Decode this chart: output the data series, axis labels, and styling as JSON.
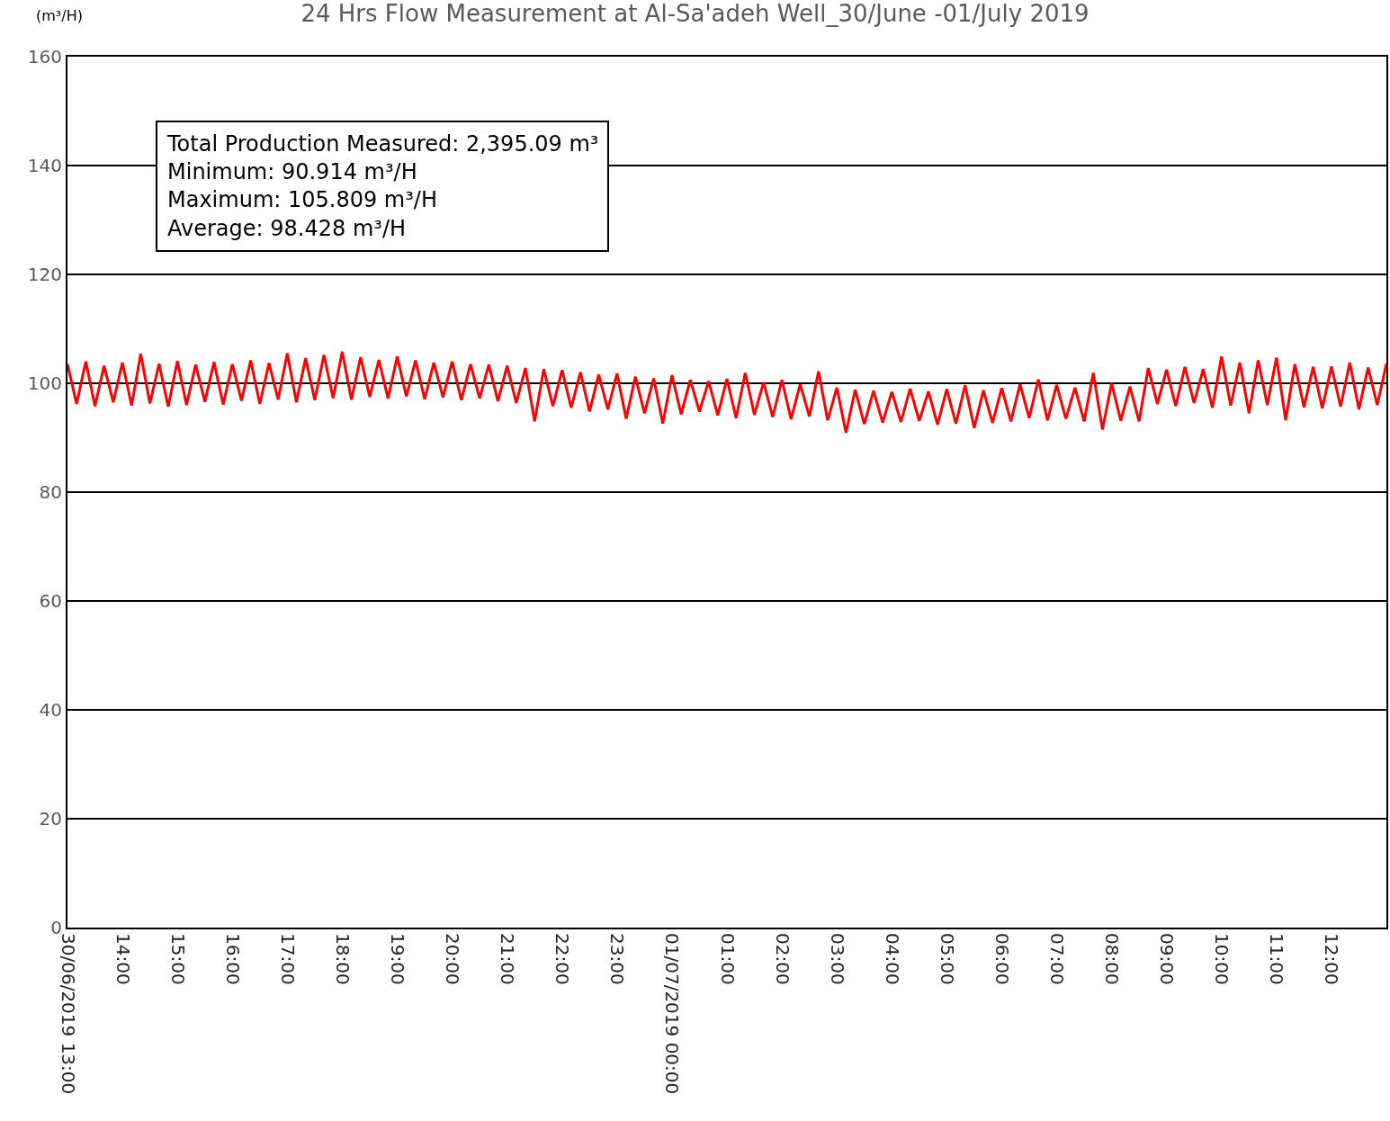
{
  "chart_data": {
    "type": "line",
    "title": "24 Hrs Flow Measurement at Al-Sa'adeh Well_30/June -01/July 2019",
    "ylabel": "(m³/H)",
    "annotations": [
      "Total Production Measured: 2,395.09 m³\nMinimum: 90.914 m³/H\nMaximum: 105.809 m³/H\nAverage: 98.428 m³/H"
    ],
    "x": [
      "2019-06-30T13:00",
      "2019-06-30T13:10",
      "2019-06-30T13:20",
      "2019-06-30T13:30",
      "2019-06-30T13:40",
      "2019-06-30T13:50",
      "2019-06-30T14:00",
      "2019-06-30T14:10",
      "2019-06-30T14:20",
      "2019-06-30T14:30",
      "2019-06-30T14:40",
      "2019-06-30T14:50",
      "2019-06-30T15:00",
      "2019-06-30T15:10",
      "2019-06-30T15:20",
      "2019-06-30T15:30",
      "2019-06-30T15:40",
      "2019-06-30T15:50",
      "2019-06-30T16:00",
      "2019-06-30T16:10",
      "2019-06-30T16:20",
      "2019-06-30T16:30",
      "2019-06-30T16:40",
      "2019-06-30T16:50",
      "2019-06-30T17:00",
      "2019-06-30T17:10",
      "2019-06-30T17:20",
      "2019-06-30T17:30",
      "2019-06-30T17:40",
      "2019-06-30T17:50",
      "2019-06-30T18:00",
      "2019-06-30T18:10",
      "2019-06-30T18:20",
      "2019-06-30T18:30",
      "2019-06-30T18:40",
      "2019-06-30T18:50",
      "2019-06-30T19:00",
      "2019-06-30T19:10",
      "2019-06-30T19:20",
      "2019-06-30T19:30",
      "2019-06-30T19:40",
      "2019-06-30T19:50",
      "2019-06-30T20:00",
      "2019-06-30T20:10",
      "2019-06-30T20:20",
      "2019-06-30T20:30",
      "2019-06-30T20:40",
      "2019-06-30T20:50",
      "2019-06-30T21:00",
      "2019-06-30T21:10",
      "2019-06-30T21:20",
      "2019-06-30T21:30",
      "2019-06-30T21:40",
      "2019-06-30T21:50",
      "2019-06-30T22:00",
      "2019-06-30T22:10",
      "2019-06-30T22:20",
      "2019-06-30T22:30",
      "2019-06-30T22:40",
      "2019-06-30T22:50",
      "2019-06-30T23:00",
      "2019-06-30T23:10",
      "2019-06-30T23:20",
      "2019-06-30T23:30",
      "2019-06-30T23:40",
      "2019-06-30T23:50",
      "2019-07-01T00:00",
      "2019-07-01T00:10",
      "2019-07-01T00:20",
      "2019-07-01T00:30",
      "2019-07-01T00:40",
      "2019-07-01T00:50",
      "2019-07-01T01:00",
      "2019-07-01T01:10",
      "2019-07-01T01:20",
      "2019-07-01T01:30",
      "2019-07-01T01:40",
      "2019-07-01T01:50",
      "2019-07-01T02:00",
      "2019-07-01T02:10",
      "2019-07-01T02:20",
      "2019-07-01T02:30",
      "2019-07-01T02:40",
      "2019-07-01T02:50",
      "2019-07-01T03:00",
      "2019-07-01T03:10",
      "2019-07-01T03:20",
      "2019-07-01T03:30",
      "2019-07-01T03:40",
      "2019-07-01T03:50",
      "2019-07-01T04:00",
      "2019-07-01T04:10",
      "2019-07-01T04:20",
      "2019-07-01T04:30",
      "2019-07-01T04:40",
      "2019-07-01T04:50",
      "2019-07-01T05:00",
      "2019-07-01T05:10",
      "2019-07-01T05:20",
      "2019-07-01T05:30",
      "2019-07-01T05:40",
      "2019-07-01T05:50",
      "2019-07-01T06:00",
      "2019-07-01T06:10",
      "2019-07-01T06:20",
      "2019-07-01T06:30",
      "2019-07-01T06:40",
      "2019-07-01T06:50",
      "2019-07-01T07:00",
      "2019-07-01T07:10",
      "2019-07-01T07:20",
      "2019-07-01T07:30",
      "2019-07-01T07:40",
      "2019-07-01T07:50",
      "2019-07-01T08:00",
      "2019-07-01T08:10",
      "2019-07-01T08:20",
      "2019-07-01T08:30",
      "2019-07-01T08:40",
      "2019-07-01T08:50",
      "2019-07-01T09:00",
      "2019-07-01T09:10",
      "2019-07-01T09:20",
      "2019-07-01T09:30",
      "2019-07-01T09:40",
      "2019-07-01T09:50",
      "2019-07-01T10:00",
      "2019-07-01T10:10",
      "2019-07-01T10:20",
      "2019-07-01T10:30",
      "2019-07-01T10:40",
      "2019-07-01T10:50",
      "2019-07-01T11:00",
      "2019-07-01T11:10",
      "2019-07-01T11:20",
      "2019-07-01T11:30",
      "2019-07-01T11:40",
      "2019-07-01T11:50",
      "2019-07-01T12:00",
      "2019-07-01T12:10",
      "2019-07-01T12:20",
      "2019-07-01T12:30",
      "2019-07-01T12:40",
      "2019-07-01T12:50",
      "2019-07-01T13:00"
    ],
    "series": [
      {
        "color": "#ff0000",
        "values": [
          103.5,
          96.2,
          104.0,
          95.8,
          103.2,
          96.5,
          103.8,
          95.9,
          105.4,
          96.3,
          103.6,
          95.7,
          104.1,
          96.0,
          103.4,
          96.6,
          103.9,
          96.1,
          103.5,
          96.8,
          104.2,
          96.2,
          103.7,
          97.0,
          105.5,
          96.5,
          104.6,
          96.9,
          105.2,
          97.3,
          105.8,
          97.0,
          104.8,
          97.5,
          104.3,
          97.2,
          104.9,
          97.6,
          104.2,
          97.1,
          103.8,
          97.4,
          104.0,
          96.9,
          103.5,
          97.2,
          103.4,
          96.7,
          103.2,
          96.4,
          102.8,
          93.0,
          102.6,
          95.8,
          102.4,
          95.5,
          102.0,
          94.8,
          101.6,
          95.2,
          101.8,
          93.5,
          101.2,
          94.5,
          100.9,
          92.6,
          101.5,
          94.3,
          100.6,
          94.8,
          100.4,
          94.1,
          100.8,
          93.6,
          101.9,
          94.2,
          100.2,
          93.8,
          100.6,
          93.4,
          99.8,
          93.9,
          102.2,
          93.2,
          99.2,
          90.9,
          98.8,
          92.5,
          98.6,
          92.8,
          98.4,
          92.9,
          99.0,
          93.1,
          98.5,
          92.4,
          98.9,
          92.6,
          99.6,
          91.8,
          98.7,
          92.7,
          99.1,
          93.0,
          99.8,
          93.6,
          100.7,
          93.2,
          99.7,
          93.5,
          99.2,
          93.0,
          101.9,
          91.5,
          100.0,
          93.1,
          99.4,
          93.0,
          102.8,
          96.2,
          102.5,
          95.8,
          103.0,
          96.4,
          102.6,
          95.5,
          104.9,
          95.9,
          103.8,
          94.5,
          104.2,
          96.0,
          104.7,
          93.2,
          103.5,
          95.6,
          103.0,
          95.4,
          103.1,
          95.7,
          103.8,
          95.2,
          102.9,
          96.0,
          103.6
        ]
      }
    ],
    "xlim": [
      "2019-06-30T13:00",
      "2019-07-01T13:00"
    ],
    "xticks": [
      {
        "value": "2019-06-30T13:00",
        "label": "30/06/2019 13:00"
      },
      {
        "value": "2019-06-30T14:00",
        "label": "14:00"
      },
      {
        "value": "2019-06-30T15:00",
        "label": "15:00"
      },
      {
        "value": "2019-06-30T16:00",
        "label": "16:00"
      },
      {
        "value": "2019-06-30T17:00",
        "label": "17:00"
      },
      {
        "value": "2019-06-30T18:00",
        "label": "18:00"
      },
      {
        "value": "2019-06-30T19:00",
        "label": "19:00"
      },
      {
        "value": "2019-06-30T20:00",
        "label": "20:00"
      },
      {
        "value": "2019-06-30T21:00",
        "label": "21:00"
      },
      {
        "value": "2019-06-30T22:00",
        "label": "22:00"
      },
      {
        "value": "2019-06-30T23:00",
        "label": "23:00"
      },
      {
        "value": "2019-07-01T00:00",
        "label": "01/07/2019 00:00"
      },
      {
        "value": "2019-07-01T01:00",
        "label": "01:00"
      },
      {
        "value": "2019-07-01T02:00",
        "label": "02:00"
      },
      {
        "value": "2019-07-01T03:00",
        "label": "03:00"
      },
      {
        "value": "2019-07-01T04:00",
        "label": "04:00"
      },
      {
        "value": "2019-07-01T05:00",
        "label": "05:00"
      },
      {
        "value": "2019-07-01T06:00",
        "label": "06:00"
      },
      {
        "value": "2019-07-01T07:00",
        "label": "07:00"
      },
      {
        "value": "2019-07-01T08:00",
        "label": "08:00"
      },
      {
        "value": "2019-07-01T09:00",
        "label": "09:00"
      },
      {
        "value": "2019-07-01T10:00",
        "label": "10:00"
      },
      {
        "value": "2019-07-01T11:00",
        "label": "11:00"
      },
      {
        "value": "2019-07-01T12:00",
        "label": "12:00"
      }
    ],
    "ylim": [
      0,
      160
    ],
    "yticks": [
      0,
      20,
      40,
      60,
      80,
      100,
      120,
      140,
      160
    ],
    "grid": "y",
    "marker": "none",
    "line_style": "solid"
  }
}
